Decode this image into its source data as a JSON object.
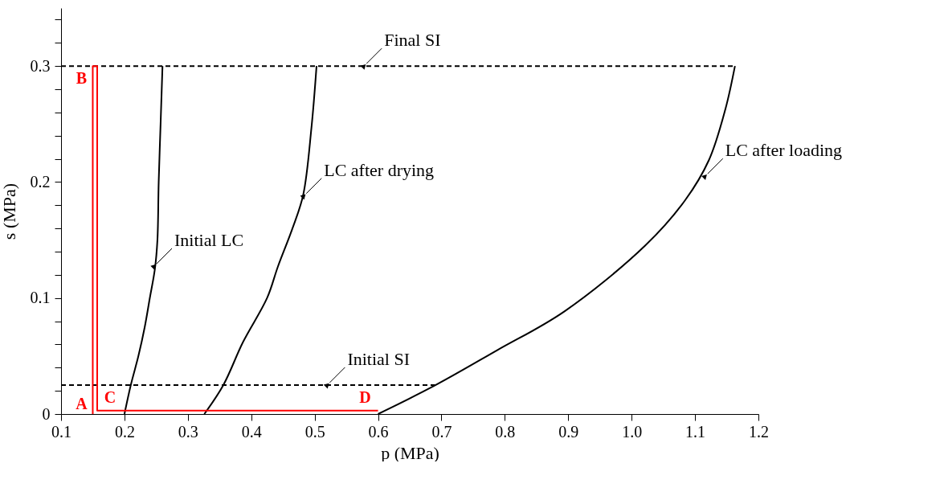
{
  "chart_data": {
    "type": "line",
    "xlabel": "p (MPa)",
    "ylabel": "s (MPa)",
    "xlim": [
      0.1,
      1.2
    ],
    "ylim": [
      0,
      0.35
    ],
    "xticks": [
      0.1,
      0.2,
      0.3,
      0.4,
      0.5,
      0.6,
      0.7,
      0.8,
      0.9,
      {
        "value": 1,
        "label": "1.0"
      },
      1.1,
      1.2
    ],
    "yticks": [
      0,
      {
        "value": 0.02,
        "label": null
      },
      {
        "value": 0.04,
        "label": null
      },
      {
        "value": 0.06,
        "label": null
      },
      {
        "value": 0.08,
        "label": null
      },
      0.1,
      {
        "value": 0.12,
        "label": null
      },
      {
        "value": 0.14,
        "label": null
      },
      {
        "value": 0.16,
        "label": null
      },
      {
        "value": 0.18,
        "label": null
      },
      0.2,
      {
        "value": 0.22,
        "label": null
      },
      {
        "value": 0.24,
        "label": null
      },
      {
        "value": 0.26,
        "label": null
      },
      {
        "value": 0.28,
        "label": null
      },
      0.3,
      {
        "value": 0.32,
        "label": null
      },
      {
        "value": 0.34,
        "label": null
      }
    ],
    "grid": false,
    "legend": false,
    "marker": "none",
    "series": [
      {
        "color": "#000000",
        "line_style": "solid",
        "x": [
          0.2,
          0.21,
          0.222,
          0.232,
          0.24,
          0.248,
          0.252,
          0.254,
          0.257,
          0.26
        ],
        "values": [
          0,
          0.025,
          0.05,
          0.075,
          0.1,
          0.125,
          0.15,
          0.2,
          0.25,
          0.3
        ]
      },
      {
        "color": "#000000",
        "line_style": "solid",
        "x": [
          0.326,
          0.356,
          0.387,
          0.425,
          0.442,
          0.465,
          0.482,
          0.495,
          0.503
        ],
        "values": [
          0,
          0.025,
          0.062,
          0.1,
          0.127,
          0.16,
          0.189,
          0.247,
          0.3
        ]
      },
      {
        "color": "#000000",
        "line_style": "solid",
        "x": [
          0.6,
          0.691,
          0.788,
          0.894,
          1.021,
          1.084,
          1.122,
          1.148,
          1.163
        ],
        "values": [
          0,
          0.025,
          0.055,
          0.0885,
          0.145,
          0.184,
          0.219,
          0.263,
          0.3
        ]
      },
      {
        "color": "#000000",
        "line_style": "dashed",
        "x": [
          0.1,
          1.163
        ],
        "values": [
          0.3,
          0.3
        ]
      },
      {
        "color": "#000000",
        "line_style": "dashed",
        "x": [
          0.1,
          0.69
        ],
        "values": [
          0.025,
          0.025
        ]
      },
      {
        "color": "#ff0000",
        "line_style": "solid",
        "x": [
          0.15,
          0.15,
          0.157,
          0.157,
          0.6
        ],
        "values": [
          0,
          0.3,
          0.3,
          0.003,
          0.003
        ],
        "value_labels": [
          "A",
          "B",
          null,
          "C",
          "D"
        ]
      }
    ],
    "annotations": [
      {
        "text": "Final SI",
        "x": 0.578,
        "y": 0.3
      },
      {
        "text": "Initial LC",
        "x": 0.247,
        "y": 0.1275
      },
      {
        "text": "LC after drying",
        "x": 0.483,
        "y": 0.188
      },
      {
        "text": "LC after loading",
        "x": 1.116,
        "y": 0.205
      },
      {
        "text": "Initial SI",
        "x": 0.52,
        "y": 0.025
      }
    ]
  }
}
